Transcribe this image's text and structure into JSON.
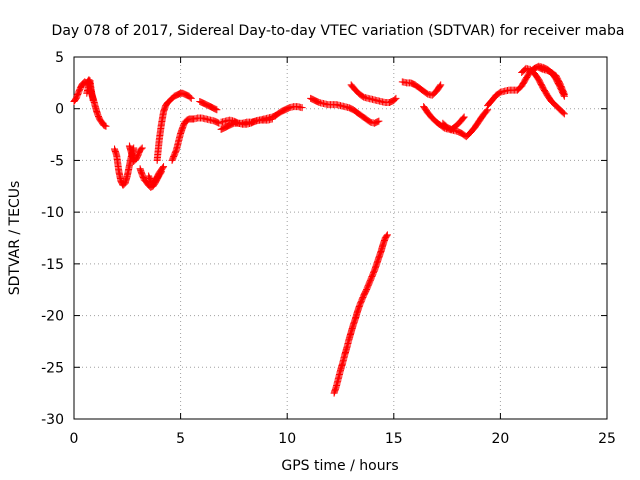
{
  "chart_data": {
    "type": "scatter",
    "title": "Day 078 of 2017, Sidereal Day-to-day VTEC variation (SDTVAR) for receiver maba",
    "xlabel": "GPS time / hours",
    "ylabel": "SDTVAR / TECUs",
    "xlim": [
      0,
      25
    ],
    "ylim": [
      -30,
      5
    ],
    "xticks": [
      "0",
      "5",
      "10",
      "15",
      "20",
      "25"
    ],
    "yticks": [
      "5",
      "0",
      "-5",
      "-10",
      "-15",
      "-20",
      "-25",
      "-30"
    ],
    "grid": true,
    "legend": "none",
    "marker": "plus",
    "color": "#ff0000",
    "series": [
      {
        "x": [
          0.0,
          0.1,
          0.2,
          0.3,
          0.4,
          0.5,
          0.6,
          0.7,
          0.8,
          0.9,
          1.0,
          1.1,
          1.2,
          1.3,
          1.4,
          1.5
        ],
        "y": [
          0.7,
          1.0,
          1.5,
          2.0,
          2.4,
          2.6,
          2.5,
          2.8,
          1.6,
          1.0,
          0.2,
          -0.5,
          -1.0,
          -1.3,
          -1.6,
          -1.7
        ]
      },
      {
        "x": [
          0.6,
          0.7,
          0.75,
          0.8,
          0.85,
          0.9
        ],
        "y": [
          1.5,
          2.3,
          2.7,
          1.9,
          1.3,
          0.8
        ]
      },
      {
        "x": [
          1.9,
          2.0,
          2.1,
          2.2,
          2.3,
          2.4,
          2.5,
          2.6,
          2.7,
          2.8
        ],
        "y": [
          -3.9,
          -4.5,
          -6.0,
          -7.0,
          -7.4,
          -7.2,
          -6.5,
          -5.5,
          -4.5,
          -3.8
        ]
      },
      {
        "x": [
          2.6,
          2.7,
          2.8,
          2.9,
          3.0,
          3.1,
          3.2
        ],
        "y": [
          -3.6,
          -4.3,
          -5.1,
          -4.9,
          -4.5,
          -4.0,
          -3.8
        ]
      },
      {
        "x": [
          3.1,
          3.2,
          3.3,
          3.4,
          3.5,
          3.6,
          3.7,
          3.8,
          3.9,
          4.0,
          4.1
        ],
        "y": [
          -5.8,
          -6.4,
          -6.9,
          -7.1,
          -7.4,
          -7.6,
          -7.5,
          -7.2,
          -6.8,
          -6.4,
          -6.1
        ]
      },
      {
        "x": [
          3.5,
          3.6,
          3.7,
          3.8,
          3.9,
          4.0,
          4.1,
          4.2
        ],
        "y": [
          -6.5,
          -7.0,
          -7.2,
          -7.0,
          -6.6,
          -6.2,
          -5.9,
          -5.6
        ]
      },
      {
        "x": [
          3.9,
          4.0,
          4.1,
          4.2,
          4.3,
          4.4,
          4.5,
          4.6,
          4.7,
          4.8,
          4.9,
          5.0,
          5.1,
          5.2,
          5.3,
          5.4,
          5.5
        ],
        "y": [
          -5.0,
          -3.0,
          -1.5,
          -0.3,
          0.3,
          0.6,
          0.8,
          1.0,
          1.2,
          1.3,
          1.4,
          1.5,
          1.5,
          1.4,
          1.3,
          1.2,
          1.0
        ]
      },
      {
        "x": [
          4.6,
          4.7,
          4.8,
          4.9,
          5.0,
          5.1,
          5.2,
          5.3,
          5.4,
          5.5,
          5.6
        ],
        "y": [
          -5.0,
          -4.5,
          -4.0,
          -3.2,
          -2.4,
          -1.8,
          -1.3,
          -1.1,
          -1.0,
          -1.0,
          -1.0
        ]
      },
      {
        "x": [
          5.6,
          5.8,
          6.0,
          6.2,
          6.4,
          6.6,
          6.8
        ],
        "y": [
          -1.0,
          -0.9,
          -0.9,
          -1.0,
          -1.1,
          -1.2,
          -1.4
        ]
      },
      {
        "x": [
          5.9,
          6.1,
          6.3,
          6.5,
          6.7
        ],
        "y": [
          0.7,
          0.5,
          0.3,
          0.1,
          -0.1
        ]
      },
      {
        "x": [
          6.9,
          7.1,
          7.3,
          7.5,
          7.7,
          7.9,
          8.1,
          8.3,
          8.5,
          8.7,
          8.9,
          9.1,
          9.3,
          9.5,
          9.7,
          9.9,
          10.1,
          10.3,
          10.5,
          10.7
        ],
        "y": [
          -2.0,
          -1.8,
          -1.6,
          -1.4,
          -1.4,
          -1.4,
          -1.3,
          -1.3,
          -1.2,
          -1.1,
          -1.0,
          -0.9,
          -0.8,
          -0.6,
          -0.3,
          -0.1,
          0.1,
          0.2,
          0.2,
          0.1
        ]
      },
      {
        "x": [
          6.9,
          7.1,
          7.3,
          7.5,
          7.7,
          7.9,
          8.1,
          8.3,
          8.5,
          8.7,
          8.9,
          9.1,
          9.3
        ],
        "y": [
          -1.3,
          -1.2,
          -1.1,
          -1.2,
          -1.4,
          -1.5,
          -1.5,
          -1.4,
          -1.2,
          -1.1,
          -1.1,
          -1.1,
          -1.0
        ]
      },
      {
        "x": [
          11.1,
          11.3,
          11.5,
          11.7,
          11.9,
          12.1,
          12.3,
          12.5,
          12.7,
          12.9,
          13.1,
          13.3,
          13.5,
          13.7,
          13.9,
          14.1,
          14.3
        ],
        "y": [
          1.0,
          0.8,
          0.6,
          0.5,
          0.4,
          0.4,
          0.4,
          0.3,
          0.2,
          0.1,
          -0.1,
          -0.4,
          -0.7,
          -1.0,
          -1.3,
          -1.4,
          -1.2
        ]
      },
      {
        "x": [
          13.0,
          13.2,
          13.4,
          13.6,
          13.8,
          14.0,
          14.2,
          14.4,
          14.6,
          14.8,
          15.0,
          15.1
        ],
        "y": [
          2.3,
          1.8,
          1.4,
          1.1,
          1.0,
          0.9,
          0.8,
          0.7,
          0.6,
          0.6,
          0.8,
          1.0
        ]
      },
      {
        "x": [
          12.2,
          12.3,
          12.4,
          12.5,
          12.6,
          12.7,
          12.8,
          12.9,
          13.0,
          13.1,
          13.2,
          13.3,
          13.4,
          13.5,
          13.6,
          13.7,
          13.8,
          13.9,
          14.0,
          14.1,
          14.2,
          14.3,
          14.4,
          14.5,
          14.6,
          14.7
        ],
        "y": [
          -27.5,
          -26.9,
          -26.1,
          -25.3,
          -24.6,
          -23.8,
          -23.1,
          -22.3,
          -21.6,
          -20.9,
          -20.3,
          -19.6,
          -19.0,
          -18.5,
          -18.0,
          -17.6,
          -17.1,
          -16.6,
          -16.1,
          -15.6,
          -15.0,
          -14.4,
          -13.8,
          -13.1,
          -12.5,
          -12.2
        ]
      },
      {
        "x": [
          15.4,
          15.6,
          15.8,
          16.0,
          16.2,
          16.4,
          16.6,
          16.8,
          17.0,
          17.2
        ],
        "y": [
          2.6,
          2.5,
          2.5,
          2.3,
          2.0,
          1.7,
          1.4,
          1.3,
          1.7,
          2.3
        ]
      },
      {
        "x": [
          16.4,
          16.6,
          16.8,
          17.0,
          17.2,
          17.4,
          17.6,
          17.8,
          18.0,
          18.2,
          18.4,
          18.6,
          18.8,
          19.0,
          19.2,
          19.4
        ],
        "y": [
          0.2,
          -0.4,
          -0.9,
          -1.3,
          -1.6,
          -1.9,
          -2.0,
          -2.1,
          -2.2,
          -2.4,
          -2.7,
          -2.3,
          -1.8,
          -1.2,
          -0.6,
          -0.1
        ]
      },
      {
        "x": [
          17.3,
          17.5,
          17.7,
          17.9,
          18.1,
          18.3
        ],
        "y": [
          -1.4,
          -1.8,
          -2.0,
          -1.7,
          -1.3,
          -0.8
        ]
      },
      {
        "x": [
          19.4,
          19.6,
          19.8,
          20.0,
          20.2,
          20.4,
          20.6,
          20.8,
          21.0,
          21.2,
          21.4,
          21.6,
          21.8,
          22.0,
          22.2,
          22.4,
          22.6,
          22.8,
          23.0
        ],
        "y": [
          0.3,
          0.8,
          1.3,
          1.6,
          1.7,
          1.8,
          1.8,
          1.8,
          2.2,
          2.9,
          3.6,
          3.9,
          4.1,
          4.0,
          3.8,
          3.5,
          2.9,
          2.1,
          1.2
        ]
      },
      {
        "x": [
          21.0,
          21.2,
          21.4,
          21.6,
          21.8,
          22.0,
          22.2,
          22.4,
          22.6,
          22.8,
          23.0
        ],
        "y": [
          3.5,
          3.9,
          3.8,
          3.4,
          2.8,
          2.0,
          1.3,
          0.7,
          0.3,
          -0.1,
          -0.5
        ]
      },
      {
        "x": [
          21.8,
          22.0,
          22.2,
          22.4,
          22.6,
          22.8,
          23.0
        ],
        "y": [
          4.0,
          3.8,
          3.7,
          3.5,
          3.2,
          2.4,
          1.4
        ]
      }
    ]
  }
}
